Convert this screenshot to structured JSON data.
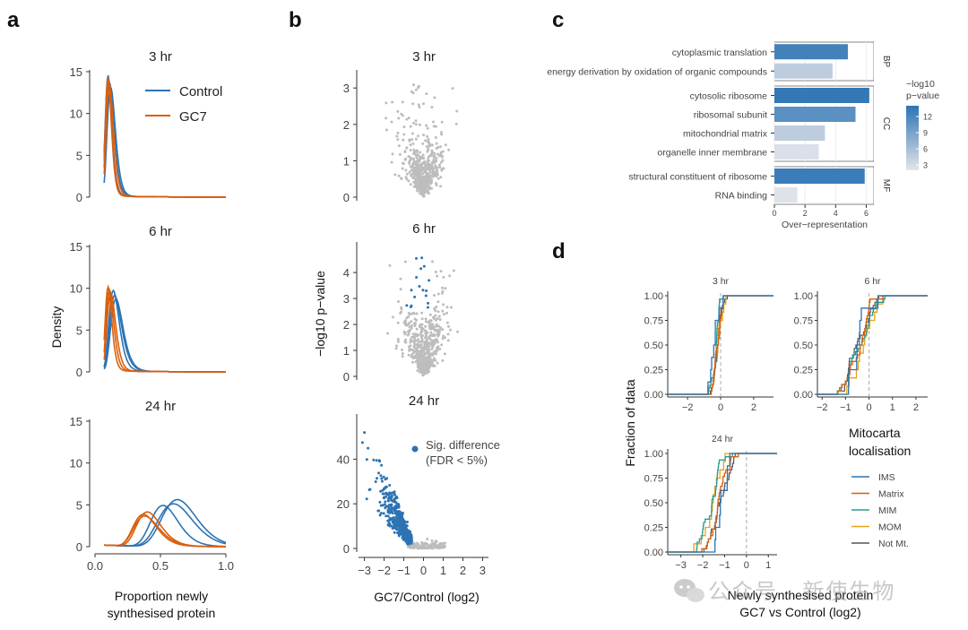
{
  "figure": {
    "watermark": "公众号 · 新使生物"
  },
  "chart_data": [
    {
      "id": "a",
      "panel_label": "a",
      "type": "line",
      "title": "",
      "xlabel_line1": "Proportion newly",
      "xlabel_line2": "synthesised protein",
      "ylabel": "Density",
      "xlim": [
        0,
        1
      ],
      "ylim": [
        0,
        15
      ],
      "xticks": [
        "0.0",
        "0.5",
        "1.0"
      ],
      "yticks": [
        "0",
        "5",
        "10",
        "15"
      ],
      "legend": [
        {
          "name": "Control",
          "color": "#2c73b4"
        },
        {
          "name": "GC7",
          "color": "#d95f0e"
        }
      ],
      "facets": [
        {
          "name": "3 hr",
          "series": [
            {
              "group": "Control",
              "mu": 0.1,
              "sigma": 0.25,
              "peak": 14.4
            },
            {
              "group": "Control",
              "mu": 0.11,
              "sigma": 0.27,
              "peak": 13.6
            },
            {
              "group": "Control",
              "mu": 0.12,
              "sigma": 0.26,
              "peak": 13.0
            },
            {
              "group": "GC7",
              "mu": 0.1,
              "sigma": 0.24,
              "peak": 14.2
            },
            {
              "group": "GC7",
              "mu": 0.1,
              "sigma": 0.23,
              "peak": 13.8
            },
            {
              "group": "GC7",
              "mu": 0.11,
              "sigma": 0.25,
              "peak": 13.3
            }
          ]
        },
        {
          "name": "6 hr",
          "series": [
            {
              "group": "Control",
              "mu": 0.14,
              "sigma": 0.28,
              "peak": 9.6
            },
            {
              "group": "Control",
              "mu": 0.15,
              "sigma": 0.3,
              "peak": 9.0
            },
            {
              "group": "Control",
              "mu": 0.16,
              "sigma": 0.29,
              "peak": 8.6
            },
            {
              "group": "GC7",
              "mu": 0.1,
              "sigma": 0.25,
              "peak": 10.0
            },
            {
              "group": "GC7",
              "mu": 0.11,
              "sigma": 0.26,
              "peak": 9.7
            },
            {
              "group": "GC7",
              "mu": 0.12,
              "sigma": 0.27,
              "peak": 9.3
            }
          ]
        },
        {
          "name": "24 hr",
          "series": [
            {
              "group": "Control",
              "mu": 0.63,
              "sigma": 0.21,
              "peak": 5.6
            },
            {
              "group": "Control",
              "mu": 0.6,
              "sigma": 0.22,
              "peak": 5.1
            },
            {
              "group": "Control",
              "mu": 0.52,
              "sigma": 0.2,
              "peak": 4.9
            },
            {
              "group": "GC7",
              "mu": 0.4,
              "sigma": 0.23,
              "peak": 4.1
            },
            {
              "group": "GC7",
              "mu": 0.37,
              "sigma": 0.24,
              "peak": 3.8
            },
            {
              "group": "GC7",
              "mu": 0.38,
              "sigma": 0.25,
              "peak": 3.6
            }
          ]
        }
      ]
    },
    {
      "id": "b",
      "panel_label": "b",
      "type": "scatter",
      "xlabel": "GC7/Control (log2)",
      "ylabel": "−log10 p−value",
      "xticks": [
        "−3",
        "−2",
        "−1",
        "0",
        "1",
        "2",
        "3"
      ],
      "legend": {
        "label_line1": "Sig. difference",
        "label_line2": "(FDR < 5%)",
        "color": "#2c73b4"
      },
      "nonsig_color": "#bdbdbd",
      "facets": [
        {
          "name": "3 hr",
          "ylim": [
            0,
            3.3
          ],
          "yticks": [
            "0",
            "1",
            "2",
            "3"
          ],
          "max_y": 3.1,
          "sig_threshold": null,
          "n_points": 520,
          "x_center": 0.0,
          "x_spread": 0.6
        },
        {
          "name": "6 hr",
          "ylim": [
            0,
            4.9
          ],
          "yticks": [
            "0",
            "1",
            "2",
            "3",
            "4"
          ],
          "max_y": 4.6,
          "sig_threshold": 2.6,
          "n_points": 540,
          "x_center": 0.0,
          "x_spread": 0.6
        },
        {
          "name": "24 hr",
          "ylim": [
            0,
            57
          ],
          "yticks": [
            "0",
            "20",
            "40"
          ],
          "max_y": 55,
          "sig_threshold": 1.5,
          "n_points": 620,
          "x_center": -1.0,
          "x_spread": 0.7
        }
      ]
    },
    {
      "id": "c",
      "panel_label": "c",
      "type": "bar",
      "orientation": "horizontal",
      "xlabel": "Over−representation",
      "xlim": [
        0,
        6.5
      ],
      "xticks": [
        "0",
        "2",
        "4",
        "6"
      ],
      "colorbar": {
        "title_line1": "−log10",
        "title_line2": "p−value",
        "ticks": [
          "12",
          "9",
          "6",
          "3"
        ],
        "range": [
          2,
          14
        ],
        "low_color": "#e3e5ea",
        "high_color": "#2c73b4"
      },
      "groups": [
        {
          "name": "BP",
          "categories": [
            "cytoplasmic translation",
            "energy derivation by oxidation of organic compounds"
          ],
          "values": [
            4.8,
            3.8
          ],
          "pvalue": [
            12.5,
            4.5
          ]
        },
        {
          "name": "CC",
          "categories": [
            "cytosolic ribosome",
            "ribosomal subunit",
            "mitochondrial matrix",
            "organelle inner membrane"
          ],
          "values": [
            6.2,
            5.3,
            3.3,
            2.9
          ],
          "pvalue": [
            13.5,
            11.0,
            4.5,
            2.5
          ]
        },
        {
          "name": "MF",
          "categories": [
            "structural constituent of ribosome",
            "RNA binding"
          ],
          "values": [
            5.9,
            1.5
          ],
          "pvalue": [
            13.0,
            2.3
          ]
        }
      ]
    },
    {
      "id": "d",
      "panel_label": "d",
      "type": "line",
      "subtype": "ecdf",
      "xlabel_line1": "Newly synthesised protein",
      "xlabel_line2": "GC7 vs Control (log2)",
      "ylabel": "Fraction of data",
      "yticks": [
        "0.00",
        "0.25",
        "0.50",
        "0.75",
        "1.00"
      ],
      "legend": {
        "title_line1": "Mitocarta",
        "title_line2": "localisation",
        "entries": [
          {
            "name": "IMS",
            "color": "#2c73b4"
          },
          {
            "name": "Matrix",
            "color": "#d95f0e"
          },
          {
            "name": "MIM",
            "color": "#2a9d8f"
          },
          {
            "name": "MOM",
            "color": "#e8a317"
          },
          {
            "name": "Not Mt.",
            "color": "#555555"
          }
        ]
      },
      "facets": [
        {
          "name": "3 hr",
          "xlim": [
            -3.2,
            3.2
          ],
          "xticks": [
            "−2",
            "0",
            "2"
          ],
          "xtick_vals": [
            -2,
            0,
            2
          ],
          "medians": {
            "IMS": -0.45,
            "Matrix": -0.1,
            "MIM": -0.25,
            "MOM": -0.35,
            "Not Mt.": -0.2
          },
          "spread": 0.25
        },
        {
          "name": "6 hr",
          "xlim": [
            -2.2,
            2.5
          ],
          "xticks": [
            "−2",
            "−1",
            "0",
            "1",
            "2"
          ],
          "xtick_vals": [
            -2,
            -1,
            0,
            1,
            2
          ],
          "medians": {
            "IMS": -0.3,
            "Matrix": -0.6,
            "MIM": -0.4,
            "MOM": -0.2,
            "Not Mt.": -0.45
          },
          "spread": 0.45
        },
        {
          "name": "24 hr",
          "xlim": [
            -3.6,
            1.4
          ],
          "xticks": [
            "−3",
            "−2",
            "−1",
            "0",
            "1"
          ],
          "xtick_vals": [
            -3,
            -2,
            -1,
            0,
            1
          ],
          "medians": {
            "IMS": -1.2,
            "Matrix": -1.25,
            "MIM": -1.6,
            "MOM": -1.4,
            "Not Mt.": -1.3
          },
          "spread": 0.4
        }
      ]
    }
  ]
}
